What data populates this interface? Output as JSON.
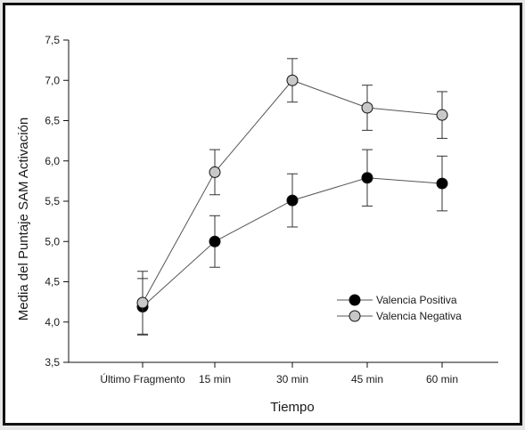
{
  "chart_data": {
    "type": "line",
    "xlabel": "Tiempo",
    "ylabel": "Media del Puntaje SAM Activación",
    "categories": [
      "Último Fragmento",
      "15 min",
      "30 min",
      "45 min",
      "60 min"
    ],
    "y_ticks": [
      "3,5",
      "4,0",
      "4,5",
      "5,0",
      "5,5",
      "6,0",
      "6,5",
      "7,0",
      "7,5"
    ],
    "ylim": [
      3.5,
      7.5
    ],
    "grid": false,
    "legend_position": "lower-right",
    "series": [
      {
        "name": "Valencia Positiva",
        "marker_color": "#000000",
        "values": [
          4.19,
          5.0,
          5.51,
          5.79,
          5.72
        ],
        "error": [
          0.35,
          0.32,
          0.33,
          0.35,
          0.34
        ]
      },
      {
        "name": "Valencia Negativa",
        "marker_color": "#c8c8c8",
        "values": [
          4.24,
          5.86,
          7.0,
          6.66,
          6.57
        ],
        "error": [
          0.39,
          0.28,
          0.27,
          0.28,
          0.29
        ]
      }
    ]
  }
}
